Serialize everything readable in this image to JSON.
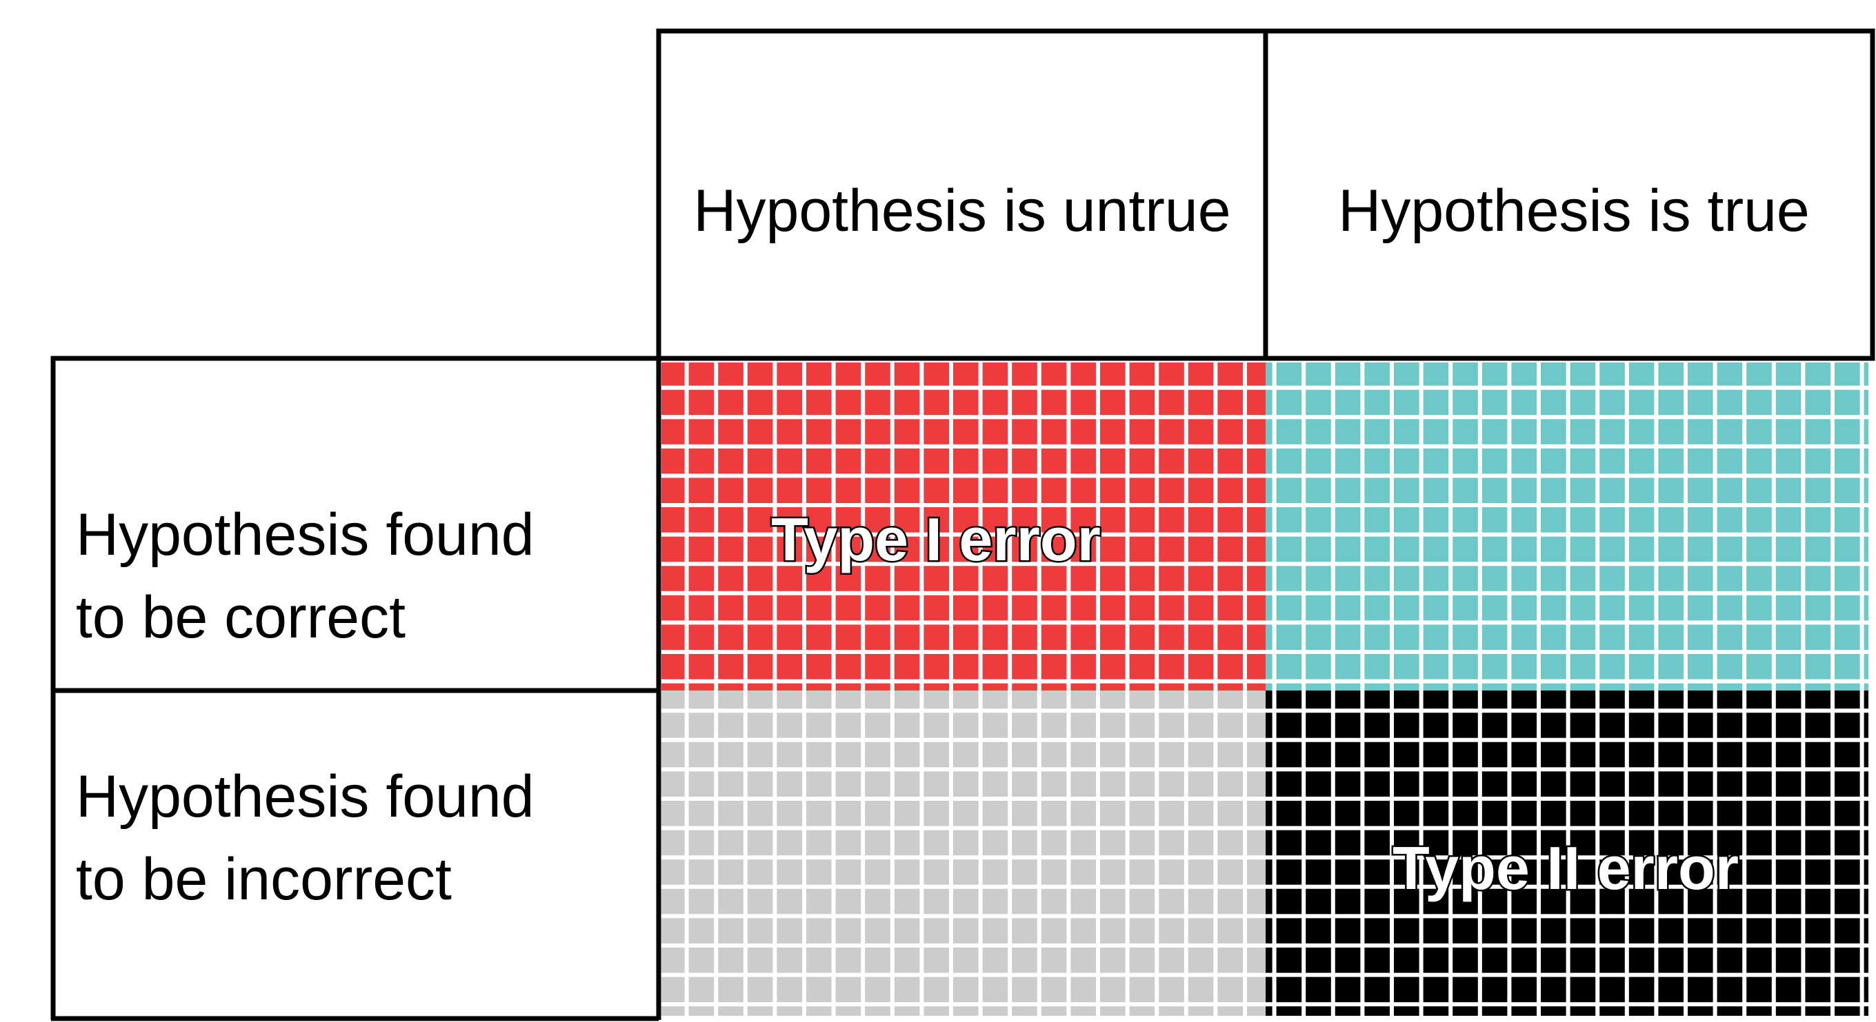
{
  "columns": [
    {
      "label": "Hypothesis is untrue"
    },
    {
      "label": "Hypothesis is true"
    }
  ],
  "rows": [
    {
      "line1": "Hypothesis found",
      "line2": "to be correct"
    },
    {
      "line1": "Hypothesis found",
      "line2": "to be incorrect"
    }
  ],
  "cells": {
    "top_left": {
      "color": "#ee3b3e",
      "label": "Type I error"
    },
    "top_right": {
      "color": "#6cc9c8",
      "label": ""
    },
    "bottom_left": {
      "color": "#cccccc",
      "label": ""
    },
    "bottom_right": {
      "color": "#000000",
      "label": "Type II error"
    }
  },
  "grid_line_color": "#ffffff",
  "border_color": "#000000"
}
